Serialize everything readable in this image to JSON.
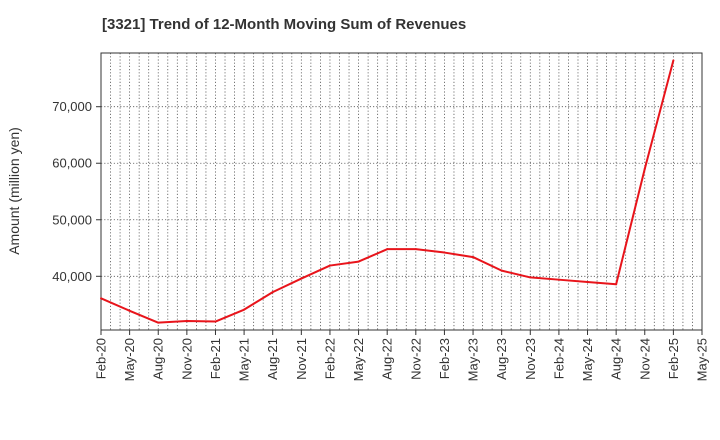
{
  "chart_data": {
    "type": "line",
    "title": "[3321]  Trend of 12-Month Moving Sum of Revenues",
    "xlabel": "",
    "ylabel": "Amount (million yen)",
    "x_tick_labels": [
      "Feb-20",
      "May-20",
      "Aug-20",
      "Nov-20",
      "Feb-21",
      "May-21",
      "Aug-21",
      "Nov-21",
      "Feb-22",
      "May-22",
      "Aug-22",
      "Nov-22",
      "Feb-23",
      "May-23",
      "Aug-23",
      "Nov-23",
      "Feb-24",
      "May-24",
      "Aug-24",
      "Nov-24",
      "Feb-25",
      "May-25"
    ],
    "y_tick_labels": [
      "40,000",
      "50,000",
      "60,000",
      "70,000"
    ],
    "y_ticks": [
      40000,
      50000,
      60000,
      70000
    ],
    "ylim": [
      30500,
      79500
    ],
    "grid": true,
    "series": [
      {
        "color": "#e8141b",
        "values": [
          36100,
          33900,
          31800,
          32100,
          32000,
          34100,
          37200,
          39600,
          41900,
          42600,
          44800,
          44800,
          44200,
          43400,
          41000,
          39800,
          39400,
          39000,
          38600,
          59000,
          78200
        ]
      }
    ]
  }
}
